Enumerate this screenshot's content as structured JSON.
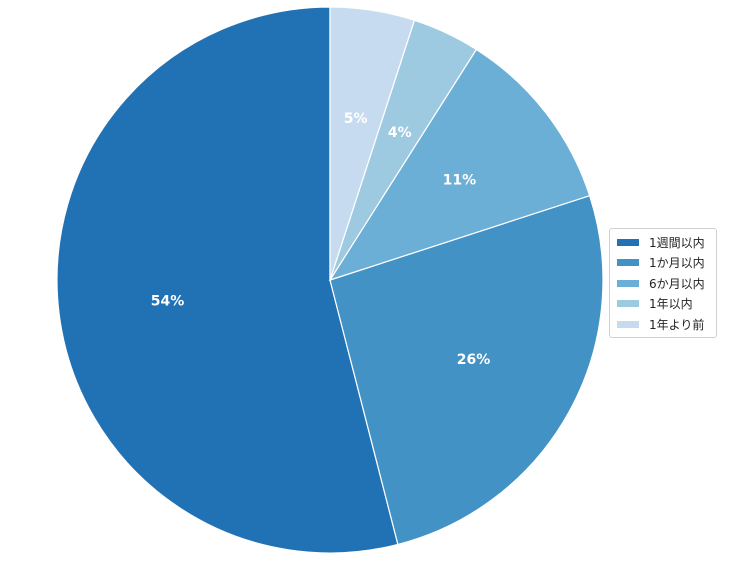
{
  "chart_data": {
    "type": "pie",
    "categories": [
      "1週間以内",
      "1か月以内",
      "6か月以内",
      "1年以内",
      "1年より前"
    ],
    "values": [
      54,
      26,
      11,
      4,
      5
    ],
    "labels": [
      "54%",
      "26%",
      "11%",
      "4%",
      "5%"
    ],
    "colors": [
      "#2171b5",
      "#4292c6",
      "#6baed6",
      "#9ecae1",
      "#c6dbef"
    ],
    "start_angle": "top",
    "direction": "counterclockwise",
    "legend": "right"
  }
}
